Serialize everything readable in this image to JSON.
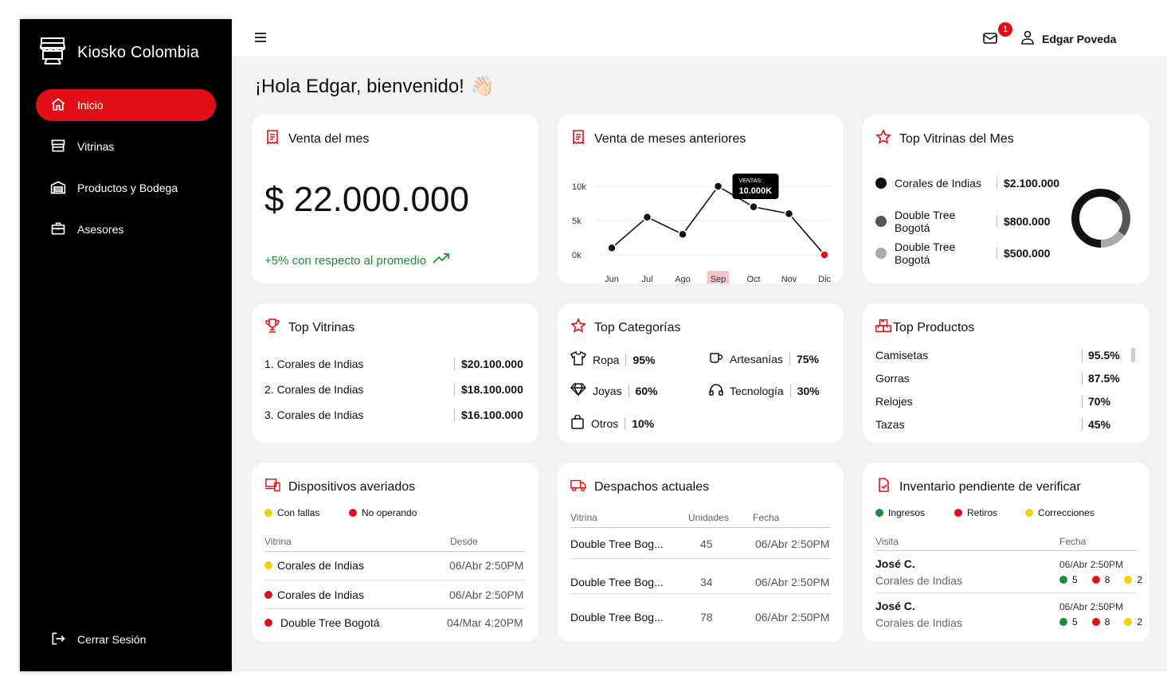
{
  "brand": {
    "name": "Kiosko Colombia",
    "icon": "store-icon"
  },
  "sidebar": {
    "items": [
      {
        "label": "Inicio",
        "icon": "home-icon"
      },
      {
        "label": "Vitrinas",
        "icon": "storefront-icon"
      },
      {
        "label": "Productos y Bodega",
        "icon": "warehouse-icon"
      },
      {
        "label": "Asesores",
        "icon": "briefcase-icon"
      }
    ],
    "logout": "Cerrar Sesión"
  },
  "topbar": {
    "notifications": "1",
    "user": "Edgar Poveda"
  },
  "greeting": "¡Hola Edgar, bienvenido!",
  "greeting_emoji": "👋🏻",
  "colors": {
    "accent": "#e30f17",
    "green": "#1e8a3c",
    "yellow": "#f5d000"
  },
  "venta_mes": {
    "title": "Venta del mes",
    "amount": "$ 22.000.000",
    "comparison": "+5% con respecto al promedio"
  },
  "meses": {
    "title": "Venta de meses anteriores",
    "tooltip_label": "VENTAS",
    "tooltip_value": "10.000K"
  },
  "chart_data": {
    "type": "line",
    "categories": [
      "Jun",
      "Jul",
      "Ago",
      "Sep",
      "Oct",
      "Nov",
      "Dic"
    ],
    "values": [
      1,
      5.5,
      3,
      10,
      7,
      6,
      0
    ],
    "ylim": [
      0,
      10
    ],
    "yticks": [
      "10k",
      "5k",
      "0k"
    ],
    "highlight": "Sep"
  },
  "top_vitrinas_mes": {
    "title": "Top Vitrinas del Mes",
    "items": [
      {
        "name": "Corales de Indias",
        "value": "$2.100.000",
        "color": "#111111"
      },
      {
        "name": "Double Tree Bogotá",
        "value": "$800.000",
        "color": "#555555"
      },
      {
        "name": "Double Tree Bogotá",
        "value": "$500.000",
        "color": "#aaaaaa"
      }
    ],
    "donut_shares": [
      0.62,
      0.23,
      0.15
    ]
  },
  "top_vitrinas": {
    "title": "Top Vitrinas",
    "items": [
      {
        "name": "1. Corales de Indias",
        "value": "$20.100.000"
      },
      {
        "name": "2. Corales de Indias",
        "value": "$18.100.000"
      },
      {
        "name": "3. Corales de Indias",
        "value": "$16.100.000"
      }
    ]
  },
  "top_categorias": {
    "title": "Top Categorías",
    "items": [
      {
        "name": "Ropa",
        "pct": "95%",
        "icon": "shirt-icon"
      },
      {
        "name": "Artesanías",
        "pct": "75%",
        "icon": "mug-icon"
      },
      {
        "name": "Joyas",
        "pct": "60%",
        "icon": "diamond-icon"
      },
      {
        "name": "Tecnología",
        "pct": "30%",
        "icon": "headphones-icon"
      },
      {
        "name": "Otros",
        "pct": "10%",
        "icon": "bag-icon"
      }
    ]
  },
  "top_productos": {
    "title": "Top Productos",
    "items": [
      {
        "name": "Camisetas",
        "pct": "95.5%"
      },
      {
        "name": "Gorras",
        "pct": "87.5%"
      },
      {
        "name": "Relojes",
        "pct": "70%"
      },
      {
        "name": "Tazas",
        "pct": "45%"
      }
    ]
  },
  "dispositivos": {
    "title": "Dispositivos averiados",
    "legend": [
      "Con fallas",
      "No operando"
    ],
    "headers": [
      "Vitrina",
      "Desde"
    ],
    "rows": [
      {
        "name": "Corales de Indias",
        "date": "06/Abr 2:50PM",
        "status": "yellow"
      },
      {
        "name": "Corales de Indias",
        "date": "06/Abr 2:50PM",
        "status": "red"
      },
      {
        "name": "Double Tree Bogotá",
        "date": "04/Mar 4:20PM",
        "status": "red"
      }
    ]
  },
  "despachos": {
    "title": "Despachos actuales",
    "headers": [
      "Vitrina",
      "Unidades",
      "Fecha"
    ],
    "rows": [
      {
        "name": "Double Tree Bog...",
        "units": "45",
        "date": "06/Abr 2:50PM"
      },
      {
        "name": "Double Tree Bog...",
        "units": "34",
        "date": "06/Abr 2:50PM"
      },
      {
        "name": "Double Tree Bog...",
        "units": "78",
        "date": "06/Abr 2:50PM"
      }
    ]
  },
  "inventario": {
    "title": "Inventario pendiente de verificar",
    "legend": [
      "Ingresos",
      "Retiros",
      "Correcciones"
    ],
    "headers": [
      "Visita",
      "Fecha"
    ],
    "rows": [
      {
        "person": "José C.",
        "place": "Corales de Indias",
        "date": "06/Abr 2:50PM",
        "ingresos": "5",
        "retiros": "8",
        "correcciones": "2"
      },
      {
        "person": "José C.",
        "place": "Corales de Indias",
        "date": "06/Abr 2:50PM",
        "ingresos": "5",
        "retiros": "8",
        "correcciones": "2"
      }
    ]
  }
}
